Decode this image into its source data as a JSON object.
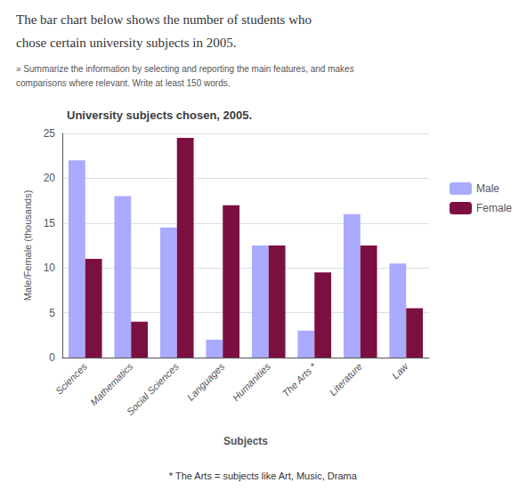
{
  "chart_data": {
    "type": "bar",
    "title": "University subjects chosen, 2005.",
    "categories": [
      "Sciences",
      "Mathematics",
      "Social Sciences",
      "Languages",
      "Humanities",
      "The Arts *",
      "Literature",
      "Law"
    ],
    "series": [
      {
        "name": "Male",
        "color": "#aaaaff",
        "values": [
          22,
          18,
          14.5,
          2,
          12.5,
          3,
          16,
          10.5
        ]
      },
      {
        "name": "Female",
        "color": "#7b1040",
        "values": [
          11,
          4,
          24.5,
          17,
          12.5,
          9.5,
          12.5,
          5.5
        ]
      }
    ],
    "ylim": [
      0,
      25
    ],
    "yticks": [
      0,
      5,
      10,
      15,
      20,
      25
    ],
    "ylabel": "Male/Female (thousands)",
    "xlabel": "Subjects",
    "annotations": [
      "The bar chart below shows the number of students who",
      "chose certain university subjects in 2005.",
      "» Summarize the information by selecting and reporting the main features, and makes",
      "comparisons where relevant. Write at least 150 words.",
      "* The Arts = subjects like Art, Music, Drama"
    ],
    "grid": true,
    "legend": "right"
  }
}
